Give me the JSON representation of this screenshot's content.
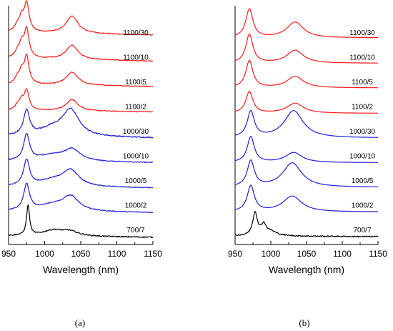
{
  "colors": {
    "red": "#ff1a1a",
    "blue": "#1f1fd6",
    "black": "#000000"
  },
  "chart_data": [
    {
      "type": "line",
      "panel_label": "(a)",
      "xlabel": "Wavelength (nm)",
      "ylabel": "",
      "xlim": [
        950,
        1150
      ],
      "xticks": [
        950,
        1000,
        1050,
        1100,
        1150
      ],
      "grid": false,
      "series": [
        {
          "name": "1100/30",
          "color": "red",
          "noise": 0.6,
          "peaks": [
            [
              962,
              4,
              8
            ],
            [
              968,
              3.5,
              18
            ],
            [
              975,
              4,
              40
            ],
            [
              1038,
              10,
              24
            ]
          ],
          "bg": [
            12,
            160,
            -0.02
          ]
        },
        {
          "name": "1100/10",
          "color": "red",
          "noise": 0.6,
          "peaks": [
            [
              962,
              4,
              8
            ],
            [
              968,
              3.5,
              18
            ],
            [
              975,
              4,
              40
            ],
            [
              1038,
              10,
              20
            ]
          ],
          "bg": [
            10,
            160,
            -0.02
          ]
        },
        {
          "name": "1100/5",
          "color": "red",
          "noise": 0.6,
          "peaks": [
            [
              962,
              4,
              8
            ],
            [
              968,
              3.5,
              16
            ],
            [
              975,
              4,
              38
            ],
            [
              1038,
              10,
              18
            ]
          ],
          "bg": [
            8,
            160,
            -0.015
          ]
        },
        {
          "name": "1100/2",
          "color": "red",
          "noise": 0.6,
          "peaks": [
            [
              962,
              4,
              6
            ],
            [
              968,
              3.5,
              12
            ],
            [
              975,
              4,
              28
            ],
            [
              1038,
              10,
              16
            ]
          ],
          "bg": [
            6,
            160,
            -0.01
          ]
        },
        {
          "name": "1000/30",
          "color": "blue",
          "noise": 0.8,
          "peaks": [
            [
              975,
              5,
              34
            ],
            [
              1036,
              14,
              36
            ],
            [
              1010,
              22,
              10
            ]
          ],
          "bg": [
            4,
            160,
            -0.01
          ]
        },
        {
          "name": "1000/10",
          "color": "blue",
          "noise": 0.6,
          "peaks": [
            [
              975,
              5,
              36
            ],
            [
              1038,
              14,
              16
            ],
            [
              1010,
              22,
              8
            ]
          ],
          "bg": [
            4,
            160,
            -0.01
          ]
        },
        {
          "name": "1000/5",
          "color": "blue",
          "noise": 0.6,
          "peaks": [
            [
              975,
              5,
              36
            ],
            [
              1036,
              14,
              22
            ],
            [
              1010,
              22,
              8
            ]
          ],
          "bg": [
            3,
            160,
            -0.01
          ]
        },
        {
          "name": "1000/2",
          "color": "blue",
          "noise": 0.6,
          "peaks": [
            [
              975,
              5,
              36
            ],
            [
              1036,
              14,
              20
            ],
            [
              1010,
              22,
              8
            ]
          ],
          "bg": [
            3,
            160,
            -0.01
          ]
        },
        {
          "name": "700/7",
          "color": "black",
          "noise": 0.8,
          "peaks": [
            [
              977,
              2.5,
              42
            ],
            [
              1012,
              18,
              8
            ],
            [
              1035,
              14,
              6
            ]
          ],
          "bg": [
            3,
            160,
            -0.01
          ]
        }
      ]
    },
    {
      "type": "line",
      "panel_label": "(b)",
      "xlabel": "Wavelength (nm)",
      "ylabel": "",
      "xlim": [
        950,
        1150
      ],
      "xticks": [
        950,
        1000,
        1050,
        1100,
        1150
      ],
      "grid": false,
      "series": [
        {
          "name": "1100/30",
          "color": "red",
          "noise": 0.1,
          "peaks": [
            [
              970,
              6,
              40
            ],
            [
              1034,
              14,
              22
            ]
          ],
          "bg": [
            4,
            160,
            0
          ]
        },
        {
          "name": "1100/10",
          "color": "red",
          "noise": 0.1,
          "peaks": [
            [
              970,
              6,
              40
            ],
            [
              1034,
              14,
              18
            ]
          ],
          "bg": [
            3,
            160,
            0
          ]
        },
        {
          "name": "1100/5",
          "color": "red",
          "noise": 0.1,
          "peaks": [
            [
              970,
              6,
              38
            ],
            [
              1034,
              14,
              16
            ]
          ],
          "bg": [
            3,
            160,
            0
          ]
        },
        {
          "name": "1100/2",
          "color": "red",
          "noise": 0.1,
          "peaks": [
            [
              970,
              6,
              30
            ],
            [
              1034,
              14,
              14
            ]
          ],
          "bg": [
            2,
            160,
            0
          ]
        },
        {
          "name": "1000/30",
          "color": "blue",
          "noise": 0.1,
          "peaks": [
            [
              972,
              6,
              36
            ],
            [
              1032,
              16,
              38
            ]
          ],
          "bg": [
            2,
            160,
            0
          ]
        },
        {
          "name": "1000/10",
          "color": "blue",
          "noise": 0.1,
          "peaks": [
            [
              972,
              6,
              36
            ],
            [
              1032,
              14,
              14
            ]
          ],
          "bg": [
            2,
            160,
            0
          ]
        },
        {
          "name": "1000/5",
          "color": "blue",
          "noise": 0.1,
          "peaks": [
            [
              972,
              6,
              36
            ],
            [
              1030,
              16,
              34
            ]
          ],
          "bg": [
            2,
            160,
            0
          ]
        },
        {
          "name": "1000/2",
          "color": "blue",
          "noise": 0.1,
          "peaks": [
            [
              972,
              6,
              36
            ],
            [
              1030,
              16,
              22
            ]
          ],
          "bg": [
            2,
            160,
            0
          ]
        },
        {
          "name": "700/7",
          "color": "black",
          "noise": 0.8,
          "peaks": [
            [
              978,
              4,
              32
            ],
            [
              990,
              4,
              14
            ],
            [
              1000,
              10,
              6
            ]
          ],
          "bg": [
            3,
            160,
            -0.005
          ]
        }
      ]
    }
  ]
}
